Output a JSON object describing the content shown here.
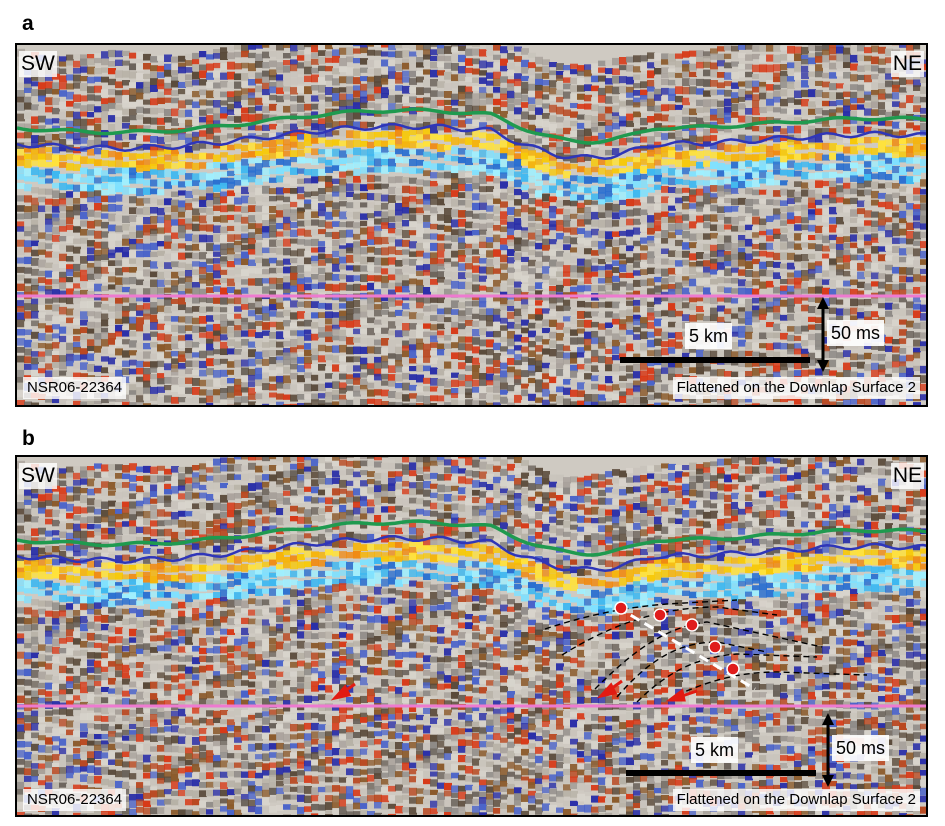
{
  "panels": [
    {
      "letter": "a",
      "left_dir": "SW",
      "right_dir": "NE",
      "line_id": "NSR06-22364",
      "flatten_note": "Flattened on the Downlap Surface 2",
      "h_scale": "5 km",
      "v_scale": "50 ms"
    },
    {
      "letter": "b",
      "left_dir": "SW",
      "right_dir": "NE",
      "line_id": "NSR06-22364",
      "flatten_note": "Flattened on the Downlap Surface 2",
      "h_scale": "5 km",
      "v_scale": "50 ms"
    }
  ],
  "colors": {
    "green_horizon": "#1f9a4f",
    "blue_horizon": "#2f36b8",
    "pink_datum": "#ee7ad0",
    "arrows": "#e21b12",
    "fault": "#ffffff"
  }
}
